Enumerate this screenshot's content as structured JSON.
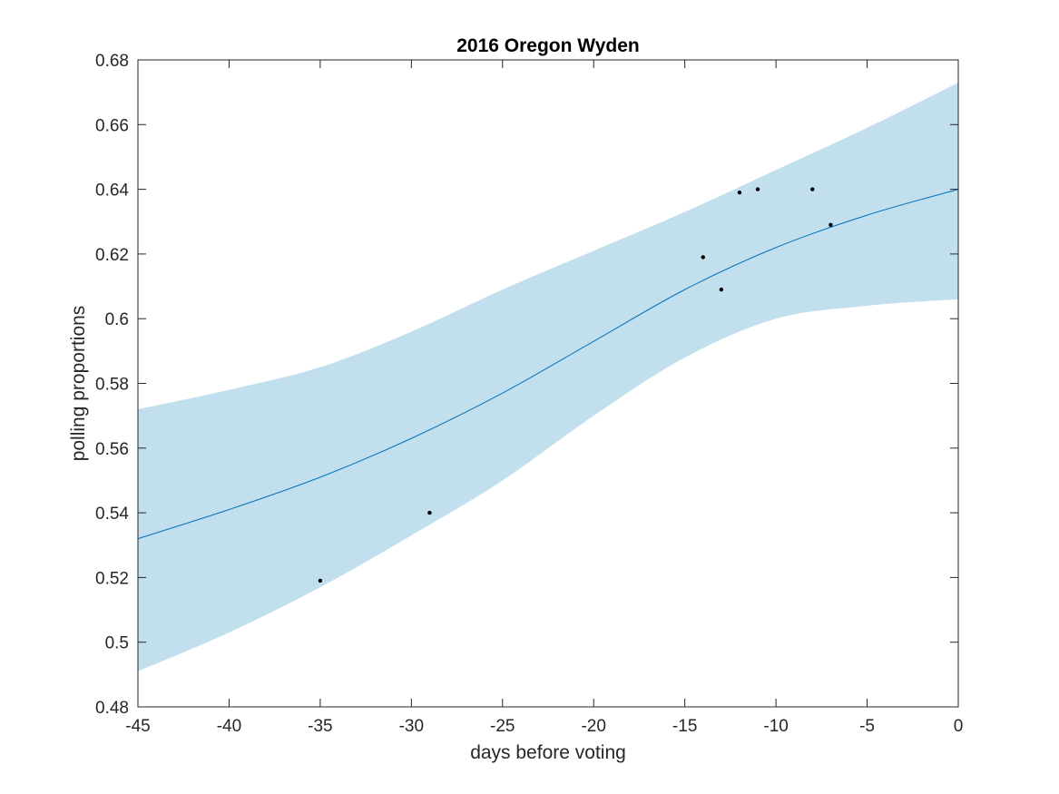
{
  "chart_data": {
    "type": "line",
    "title": "2016 Oregon Wyden",
    "xlabel": "days before voting",
    "ylabel": "polling proportions",
    "xlim": [
      -45,
      0
    ],
    "ylim": [
      0.48,
      0.68
    ],
    "xticks": [
      -45,
      -40,
      -35,
      -30,
      -25,
      -20,
      -15,
      -10,
      -5,
      0
    ],
    "xtick_labels": [
      "-45",
      "-40",
      "-35",
      "-30",
      "-25",
      "-20",
      "-15",
      "-10",
      "-5",
      "0"
    ],
    "yticks": [
      0.48,
      0.5,
      0.52,
      0.54,
      0.56,
      0.58,
      0.6,
      0.62,
      0.64,
      0.66,
      0.68
    ],
    "ytick_labels": [
      "0.48",
      "0.5",
      "0.52",
      "0.54",
      "0.56",
      "0.58",
      "0.6",
      "0.62",
      "0.64",
      "0.66",
      "0.68"
    ],
    "grid": false,
    "colors": {
      "band": "#c2dfed",
      "line": "#0072bd",
      "points": "#000000",
      "axes": "#262626"
    },
    "series": [
      {
        "kind": "line",
        "x": [
          -45,
          -40,
          -35,
          -30,
          -25,
          -20,
          -15,
          -10,
          -5,
          0
        ],
        "y": [
          0.532,
          0.541,
          0.551,
          0.563,
          0.577,
          0.593,
          0.609,
          0.622,
          0.632,
          0.64
        ]
      },
      {
        "kind": "band",
        "x": [
          -45,
          -40,
          -35,
          -30,
          -25,
          -20,
          -15,
          -10,
          -5,
          0
        ],
        "lower": [
          0.491,
          0.503,
          0.517,
          0.533,
          0.55,
          0.57,
          0.588,
          0.6,
          0.604,
          0.606
        ],
        "upper": [
          0.572,
          0.578,
          0.585,
          0.596,
          0.609,
          0.621,
          0.633,
          0.646,
          0.659,
          0.673
        ]
      },
      {
        "kind": "scatter",
        "x": [
          -35,
          -29,
          -14,
          -13,
          -12,
          -11,
          -8,
          -7
        ],
        "y": [
          0.519,
          0.54,
          0.619,
          0.609,
          0.639,
          0.64,
          0.64,
          0.629
        ]
      }
    ]
  }
}
